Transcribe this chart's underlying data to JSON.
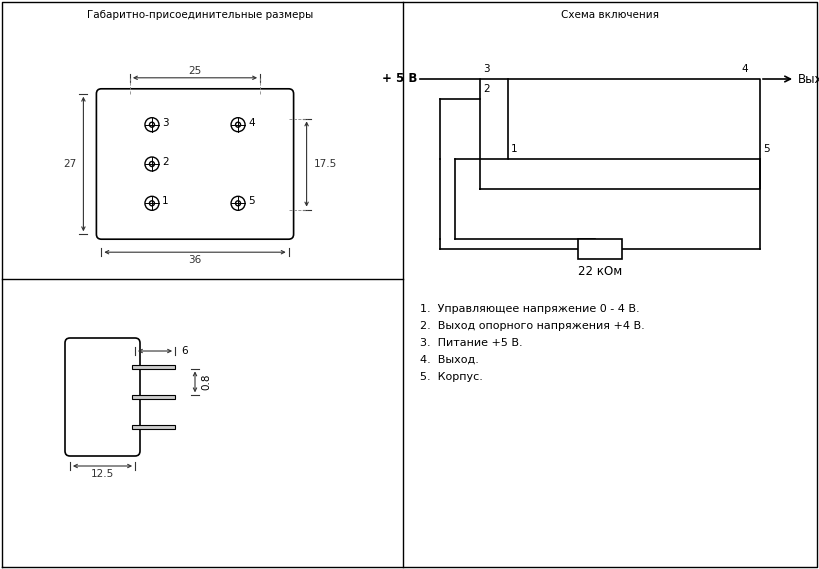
{
  "title_left": "Габаритно-присоединительные размеры",
  "title_right": "Схема включения",
  "bg_color": "#ffffff",
  "line_color": "#000000",
  "text_color": "#000000",
  "legend_lines": [
    "1.  Управляющее напряжение 0 - 4 В.",
    "2.  Выход опорного напряжения +4 В.",
    "3.  Питание +5 В.",
    "4.  Выход.",
    "5.  Корпус."
  ]
}
